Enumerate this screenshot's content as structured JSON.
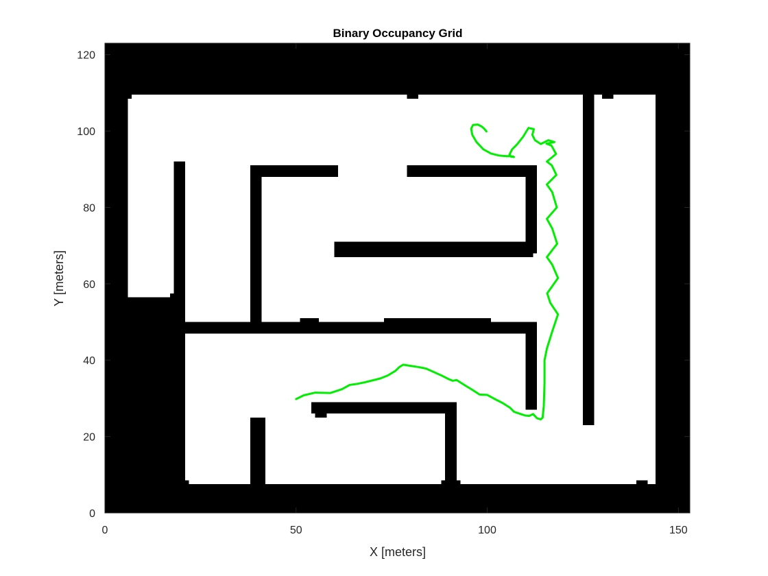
{
  "chart_data": {
    "type": "occupancy-grid",
    "title": "Binary Occupancy Grid",
    "xlabel": "X [meters]",
    "ylabel": "Y [meters]",
    "xlim": [
      0,
      153
    ],
    "ylim": [
      0,
      123
    ],
    "xticks": [
      0,
      50,
      100,
      150
    ],
    "yticks": [
      0,
      20,
      40,
      60,
      80,
      100,
      120
    ],
    "grid": false,
    "colors": {
      "occupied": "#000000",
      "free": "#ffffff",
      "path": "#00ee00"
    },
    "free_regions": [
      {
        "name": "free-space-main",
        "x0": 7,
        "y0": 7.5,
        "x1": 144,
        "y1": 109.5
      },
      {
        "name": "free-space-left-pocket",
        "x0": 6,
        "y0": 56.5,
        "x1": 7.5,
        "y1": 108.5
      }
    ],
    "occupied_regions": [
      {
        "name": "left-column",
        "x0": 7,
        "y0": 7.5,
        "x1": 21,
        "y1": 56.5
      },
      {
        "name": "left-column-step",
        "x0": 17,
        "y0": 56.5,
        "x1": 18,
        "y1": 57.5
      },
      {
        "name": "wall-left-vertical",
        "x0": 18,
        "y0": 48,
        "x1": 21,
        "y1": 92
      },
      {
        "name": "wall-middle-horizontal",
        "x0": 21,
        "y0": 47,
        "x1": 113,
        "y1": 50
      },
      {
        "name": "wall-middle-bump-1",
        "x0": 51,
        "y0": 50,
        "x1": 56,
        "y1": 51
      },
      {
        "name": "wall-middle-bump-2",
        "x0": 73,
        "y0": 50,
        "x1": 101,
        "y1": 51
      },
      {
        "name": "wall-right-vertical-lower",
        "x0": 110,
        "y0": 27,
        "x1": 113,
        "y1": 50
      },
      {
        "name": "wall-inner-vertical",
        "x0": 38,
        "y0": 50,
        "x1": 41,
        "y1": 91
      },
      {
        "name": "wall-top-left-horizontal",
        "x0": 38,
        "y0": 88,
        "x1": 61,
        "y1": 91
      },
      {
        "name": "wall-top-right-horizontal",
        "x0": 79,
        "y0": 88,
        "x1": 113,
        "y1": 91
      },
      {
        "name": "wall-right-vertical-upper",
        "x0": 110,
        "y0": 68,
        "x1": 113,
        "y1": 91
      },
      {
        "name": "wall-long-horizontal",
        "x0": 60,
        "y0": 67,
        "x1": 112,
        "y1": 71
      },
      {
        "name": "wall-far-right-vertical",
        "x0": 125,
        "y0": 23,
        "x1": 128,
        "y1": 109.5
      },
      {
        "name": "wall-bottom-inner-horizontal",
        "x0": 54,
        "y0": 26,
        "x1": 92,
        "y1": 29
      },
      {
        "name": "wall-bottom-inner-bump",
        "x0": 55,
        "y0": 25,
        "x1": 58,
        "y1": 26
      },
      {
        "name": "wall-bottom-inner-vertical",
        "x0": 89,
        "y0": 7.5,
        "x1": 92,
        "y1": 29
      },
      {
        "name": "wall-bottom-left-post",
        "x0": 38,
        "y0": 0,
        "x1": 42,
        "y1": 25
      },
      {
        "name": "top-notch-1",
        "x0": 79,
        "y0": 108.5,
        "x1": 82,
        "y1": 109.5
      },
      {
        "name": "top-notch-2",
        "x0": 130,
        "y0": 108.5,
        "x1": 133,
        "y1": 109.5
      },
      {
        "name": "bottom-notch-1",
        "x0": 20,
        "y0": 7.5,
        "x1": 22,
        "y1": 8.5
      },
      {
        "name": "bottom-notch-2",
        "x0": 88,
        "y0": 7.5,
        "x1": 93,
        "y1": 8.5
      },
      {
        "name": "bottom-notch-3",
        "x0": 139,
        "y0": 7.5,
        "x1": 142,
        "y1": 8.5
      }
    ],
    "path": {
      "x": [
        50,
        52,
        55,
        59,
        62,
        64,
        66,
        68,
        72,
        74,
        76,
        77,
        78,
        80,
        82,
        84,
        86,
        88,
        90,
        91,
        92,
        94,
        96,
        98,
        100,
        102,
        104,
        106,
        107,
        109,
        110,
        111,
        112,
        113,
        114,
        114.5,
        114.8,
        115,
        115,
        115.6,
        117,
        118.5,
        116.5,
        115.7,
        118.5,
        117,
        115.6,
        118.3,
        117,
        115.6,
        118.2,
        117,
        115.6,
        118.1,
        116.9,
        115.6,
        118,
        116.8,
        115.5,
        117.6,
        116,
        114,
        112.5,
        111.8,
        112.2,
        110.8,
        109.4,
        107.8,
        106.5,
        105.8,
        106.2,
        107,
        106.8,
        106,
        105,
        103,
        101,
        99,
        97.2,
        96.1,
        95.8,
        96.3,
        97.5,
        98.5,
        99.2,
        99.8
      ],
      "y": [
        29.8,
        30.8,
        31.5,
        31.4,
        32.4,
        33.5,
        33.8,
        34.2,
        35.2,
        36,
        37.2,
        38.2,
        38.8,
        38.5,
        38.2,
        37.8,
        36.9,
        36,
        35,
        34.6,
        34.8,
        33.5,
        32.3,
        31,
        30.9,
        29.8,
        28.8,
        27.5,
        26.5,
        25.8,
        25.5,
        25.4,
        25.9,
        24.8,
        24.5,
        25,
        28,
        34,
        40,
        43,
        47.5,
        52,
        55,
        57.5,
        61.5,
        65,
        67,
        70.5,
        74.5,
        77,
        80,
        84,
        86,
        88.5,
        91,
        92,
        94,
        96.2,
        96.7,
        97.1,
        97.6,
        96.6,
        97.6,
        99,
        100.5,
        100.8,
        98.5,
        96.5,
        95.2,
        93.8,
        93.3,
        93.2,
        93.3,
        93.4,
        93.4,
        93.6,
        94.1,
        95.2,
        97.1,
        99,
        100.6,
        101.6,
        101.7,
        101.2,
        100.6,
        99.9
      ]
    }
  }
}
